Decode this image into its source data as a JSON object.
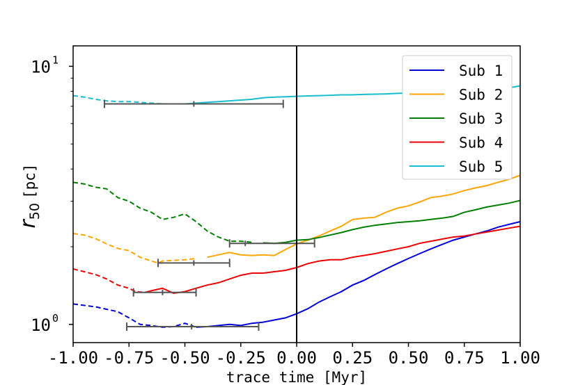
{
  "chart_data": {
    "type": "line",
    "xlabel": "trace time [Myr]",
    "ylabel": {
      "main": "r",
      "sub": "50",
      "unit": "[pc]"
    },
    "xlim": [
      -1.0,
      1.0
    ],
    "ylim": [
      0.85,
      12.0
    ],
    "yscale": "log",
    "x_ticks": [
      -1.0,
      -0.75,
      -0.5,
      -0.25,
      0.0,
      0.25,
      0.5,
      0.75,
      1.0
    ],
    "x_tick_labels": [
      "-1.00",
      "-0.75",
      "-0.50",
      "-0.25",
      "0.00",
      "0.25",
      "0.50",
      "0.75",
      "1.00"
    ],
    "y_major_ticks": [
      1,
      10
    ],
    "y_major_labels": [
      {
        "base": "10",
        "exp": "0"
      },
      {
        "base": "10",
        "exp": "1"
      }
    ],
    "y_minor_ticks": [
      2,
      3,
      4,
      5,
      6,
      7,
      8,
      9
    ],
    "vline_x": 0.0,
    "legend_position": "top-right",
    "series": [
      {
        "name": "Sub 1",
        "color": "#0000dd",
        "x": [
          -1.0,
          -0.9,
          -0.8,
          -0.75,
          -0.7,
          -0.65,
          -0.6,
          -0.55,
          -0.5,
          -0.45,
          -0.4,
          -0.35,
          -0.3,
          -0.25,
          -0.2,
          -0.15,
          -0.1,
          -0.05,
          0.0,
          0.05,
          0.1,
          0.15,
          0.2,
          0.25,
          0.3,
          0.35,
          0.4,
          0.45,
          0.5,
          0.55,
          0.6,
          0.65,
          0.7,
          0.75,
          0.8,
          0.85,
          0.9,
          0.95,
          1.0
        ],
        "y": [
          1.2,
          1.17,
          1.12,
          1.06,
          1.0,
          0.99,
          0.975,
          0.98,
          1.01,
          0.975,
          0.98,
          0.99,
          1.0,
          0.99,
          1.01,
          1.02,
          1.04,
          1.06,
          1.1,
          1.15,
          1.22,
          1.28,
          1.34,
          1.42,
          1.48,
          1.56,
          1.64,
          1.72,
          1.8,
          1.88,
          1.96,
          2.04,
          2.12,
          2.18,
          2.24,
          2.3,
          2.38,
          2.44,
          2.5
        ],
        "dashed_until_x": -0.45,
        "errorbar": {
          "x": -0.47,
          "y": 0.98,
          "xmin": -0.76,
          "xmax": -0.17
        }
      },
      {
        "name": "Sub 2",
        "color": "#ffa500",
        "x": [
          -1.0,
          -0.95,
          -0.9,
          -0.85,
          -0.8,
          -0.75,
          -0.7,
          -0.65,
          -0.62,
          -0.6,
          -0.55,
          -0.5,
          -0.45,
          -0.4,
          -0.35,
          -0.3,
          -0.25,
          -0.2,
          -0.15,
          -0.1,
          -0.05,
          0.0,
          0.05,
          0.1,
          0.15,
          0.2,
          0.25,
          0.3,
          0.35,
          0.4,
          0.45,
          0.5,
          0.55,
          0.6,
          0.65,
          0.7,
          0.75,
          0.8,
          0.85,
          0.9,
          0.95,
          1.0
        ],
        "y": [
          2.25,
          2.22,
          2.15,
          2.05,
          1.97,
          1.93,
          1.82,
          1.76,
          1.73,
          1.76,
          1.77,
          1.78,
          1.8,
          1.82,
          1.86,
          1.9,
          1.86,
          1.85,
          1.86,
          1.85,
          1.95,
          2.05,
          2.12,
          2.2,
          2.3,
          2.4,
          2.55,
          2.58,
          2.6,
          2.72,
          2.82,
          2.88,
          2.98,
          3.1,
          3.14,
          3.2,
          3.3,
          3.38,
          3.45,
          3.55,
          3.65,
          3.78
        ],
        "dashed_until_x": -0.43,
        "errorbar": {
          "x": -0.46,
          "y": 1.73,
          "xmin": -0.62,
          "xmax": -0.3
        }
      },
      {
        "name": "Sub 3",
        "color": "#008000",
        "x": [
          -1.0,
          -0.95,
          -0.9,
          -0.85,
          -0.8,
          -0.75,
          -0.7,
          -0.65,
          -0.6,
          -0.55,
          -0.5,
          -0.45,
          -0.4,
          -0.35,
          -0.3,
          -0.25,
          -0.2,
          -0.15,
          -0.1,
          -0.05,
          0.0,
          0.05,
          0.1,
          0.15,
          0.2,
          0.25,
          0.3,
          0.35,
          0.4,
          0.45,
          0.5,
          0.55,
          0.6,
          0.65,
          0.7,
          0.75,
          0.8,
          0.85,
          0.9,
          0.95,
          1.0
        ],
        "y": [
          3.55,
          3.5,
          3.4,
          3.35,
          3.1,
          3.0,
          2.82,
          2.72,
          2.55,
          2.6,
          2.68,
          2.5,
          2.3,
          2.18,
          2.1,
          2.1,
          2.08,
          2.07,
          2.06,
          2.08,
          2.12,
          2.13,
          2.17,
          2.22,
          2.27,
          2.33,
          2.38,
          2.42,
          2.45,
          2.48,
          2.5,
          2.52,
          2.55,
          2.58,
          2.62,
          2.72,
          2.78,
          2.85,
          2.9,
          2.95,
          3.02
        ],
        "dashed_until_x": -0.18,
        "errorbar": {
          "x": -0.23,
          "y": 2.06,
          "xmin": -0.3,
          "xmax": 0.08
        }
      },
      {
        "name": "Sub 4",
        "color": "#ee0000",
        "x": [
          -1.0,
          -0.95,
          -0.9,
          -0.85,
          -0.8,
          -0.75,
          -0.72,
          -0.68,
          -0.65,
          -0.6,
          -0.55,
          -0.5,
          -0.45,
          -0.4,
          -0.35,
          -0.3,
          -0.25,
          -0.2,
          -0.15,
          -0.1,
          -0.05,
          0.0,
          0.05,
          0.1,
          0.15,
          0.2,
          0.25,
          0.3,
          0.35,
          0.4,
          0.45,
          0.5,
          0.55,
          0.6,
          0.65,
          0.7,
          0.75,
          0.8,
          0.85,
          0.9,
          0.95,
          1.0
        ],
        "y": [
          1.64,
          1.6,
          1.56,
          1.5,
          1.42,
          1.38,
          1.34,
          1.33,
          1.35,
          1.38,
          1.32,
          1.34,
          1.38,
          1.42,
          1.45,
          1.5,
          1.55,
          1.58,
          1.58,
          1.6,
          1.62,
          1.66,
          1.72,
          1.76,
          1.78,
          1.78,
          1.82,
          1.85,
          1.88,
          1.92,
          1.96,
          2.0,
          2.06,
          2.1,
          2.14,
          2.18,
          2.2,
          2.24,
          2.28,
          2.32,
          2.36,
          2.4
        ],
        "dashed_until_x": -0.68,
        "errorbar": {
          "x": -0.6,
          "y": 1.33,
          "xmin": -0.73,
          "xmax": -0.45
        }
      },
      {
        "name": "Sub 5",
        "color": "#17becf",
        "x": [
          -1.0,
          -0.95,
          -0.9,
          -0.85,
          -0.8,
          -0.75,
          -0.7,
          -0.65,
          -0.6,
          -0.55,
          -0.5,
          -0.45,
          -0.4,
          -0.35,
          -0.3,
          -0.25,
          -0.2,
          -0.15,
          -0.1,
          -0.05,
          0.0,
          0.05,
          0.1,
          0.15,
          0.2,
          0.25,
          0.3,
          0.35,
          0.4,
          0.45,
          0.5,
          0.55,
          0.6,
          0.65,
          0.7,
          0.75,
          0.8,
          0.85,
          0.9,
          0.95,
          1.0
        ],
        "y": [
          7.7,
          7.6,
          7.45,
          7.35,
          7.3,
          7.3,
          7.25,
          7.2,
          7.15,
          7.15,
          7.15,
          7.2,
          7.25,
          7.3,
          7.35,
          7.4,
          7.45,
          7.55,
          7.6,
          7.62,
          7.65,
          7.68,
          7.7,
          7.72,
          7.75,
          7.75,
          7.78,
          7.8,
          7.82,
          7.85,
          7.88,
          7.9,
          7.92,
          7.95,
          7.97,
          8.0,
          8.05,
          8.1,
          8.15,
          8.25,
          8.4
        ],
        "dashed_until_x": -0.5,
        "errorbar": {
          "x": -0.46,
          "y": 7.15,
          "xmin": -0.86,
          "xmax": -0.06
        }
      }
    ]
  }
}
